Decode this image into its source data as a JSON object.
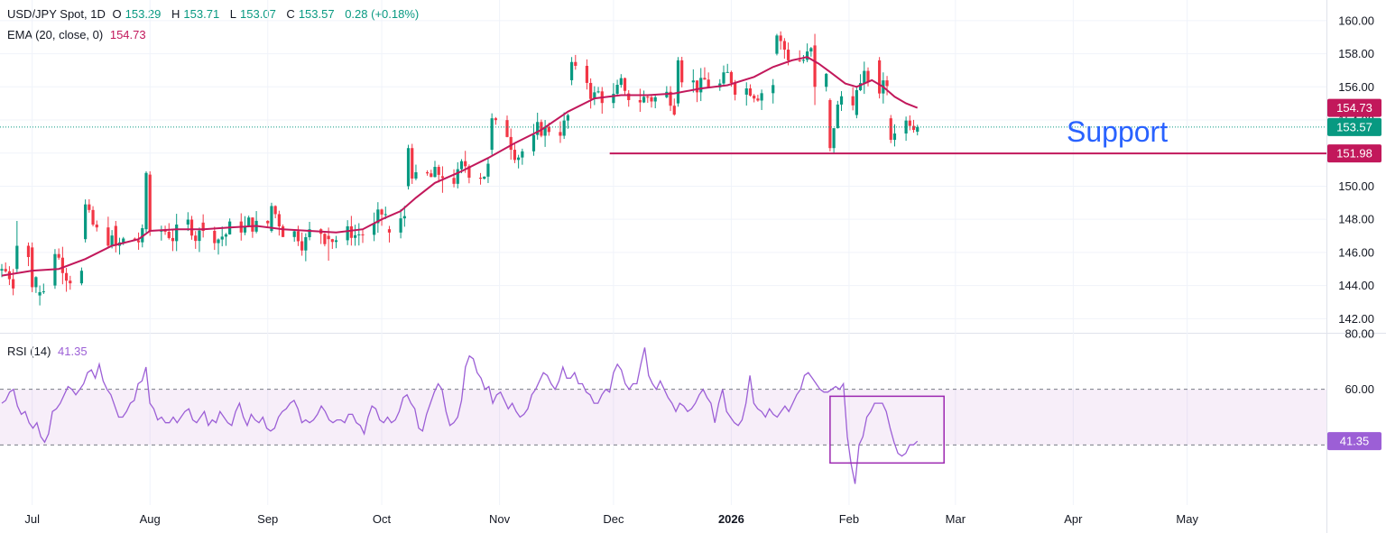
{
  "legend": {
    "symbol": "USD/JPY Spot, 1D",
    "o_label": "O",
    "o_value": "153.29",
    "h_label": "H",
    "h_value": "153.71",
    "l_label": "L",
    "l_value": "153.07",
    "c_label": "C",
    "c_value": "153.57",
    "change": "0.28 (+0.18%)",
    "ema_label": "EMA (20, close, 0)",
    "ema_value": "154.73",
    "rsi_label": "RSI (14)",
    "rsi_value": "41.35"
  },
  "annotation": {
    "support_label": "Support"
  },
  "colors": {
    "up": "#089981",
    "down": "#f23645",
    "ema": "#c2185b",
    "rsi": "#9c5fd6",
    "support": "#c2185b",
    "rsi_box": "#9c27b0",
    "annotation": "#2962ff"
  },
  "chart_data": [
    {
      "type": "candlestick",
      "title": "USD/JPY Spot, 1D",
      "y_axis": {
        "ticks": [
          "160.00",
          "158.00",
          "156.00",
          "154.00",
          "152.00",
          "150.00",
          "148.00",
          "146.00",
          "144.00",
          "142.00"
        ],
        "ylim": [
          141.2,
          160.7
        ],
        "position": "right"
      },
      "x_axis": {
        "ticks": [
          "Jul",
          "Aug",
          "Sep",
          "Oct",
          "Nov",
          "Dec",
          "2026",
          "Feb",
          "Mar",
          "Apr",
          "May"
        ],
        "bold": [
          "2026"
        ]
      },
      "price_tags": [
        {
          "label": "154.73",
          "value": 154.73,
          "color": "#c2185b"
        },
        {
          "label": "153.57",
          "value": 153.57,
          "color": "#089981"
        },
        {
          "label": "151.98",
          "value": 151.98,
          "color": "#c2185b"
        }
      ],
      "support_level": 151.98,
      "ema_series": [
        [
          "2025-06-23",
          144.6
        ],
        [
          "2025-07-01",
          144.9
        ],
        [
          "2025-07-08",
          145.0
        ],
        [
          "2025-07-15",
          145.6
        ],
        [
          "2025-07-22",
          146.4
        ],
        [
          "2025-07-29",
          146.8
        ],
        [
          "2025-08-01",
          147.3
        ],
        [
          "2025-08-08",
          147.4
        ],
        [
          "2025-08-15",
          147.4
        ],
        [
          "2025-08-22",
          147.5
        ],
        [
          "2025-08-29",
          147.6
        ],
        [
          "2025-09-05",
          147.4
        ],
        [
          "2025-09-12",
          147.3
        ],
        [
          "2025-09-19",
          147.2
        ],
        [
          "2025-09-26",
          147.4
        ],
        [
          "2025-10-01",
          148.0
        ],
        [
          "2025-10-06",
          148.5
        ],
        [
          "2025-10-10",
          149.3
        ],
        [
          "2025-10-15",
          150.2
        ],
        [
          "2025-10-22",
          150.9
        ],
        [
          "2025-10-29",
          151.7
        ],
        [
          "2025-11-05",
          152.6
        ],
        [
          "2025-11-12",
          153.4
        ],
        [
          "2025-11-19",
          154.5
        ],
        [
          "2025-11-26",
          155.3
        ],
        [
          "2025-12-03",
          155.5
        ],
        [
          "2025-12-10",
          155.5
        ],
        [
          "2025-12-17",
          155.6
        ],
        [
          "2025-12-24",
          155.9
        ],
        [
          "2025-12-31",
          156.1
        ],
        [
          "2026-01-07",
          156.6
        ],
        [
          "2026-01-12",
          157.2
        ],
        [
          "2026-01-17",
          157.6
        ],
        [
          "2026-01-21",
          157.8
        ],
        [
          "2026-01-24",
          157.4
        ],
        [
          "2026-01-27",
          156.9
        ],
        [
          "2026-01-31",
          156.2
        ],
        [
          "2026-02-03",
          156.0
        ],
        [
          "2026-02-07",
          156.4
        ],
        [
          "2026-02-10",
          156.0
        ],
        [
          "2026-02-13",
          155.4
        ],
        [
          "2026-02-16",
          155.0
        ],
        [
          "2026-02-19",
          154.73
        ]
      ],
      "candles_sample": [
        [
          "2025-06-23",
          144.9,
          145.3,
          144.5,
          145.0
        ],
        [
          "2025-06-27",
          145.0,
          147.9,
          144.8,
          146.4
        ],
        [
          "2025-07-01",
          146.3,
          146.6,
          143.6,
          143.9
        ],
        [
          "2025-07-03",
          143.4,
          144.0,
          142.8,
          143.6
        ],
        [
          "2025-07-07",
          144.0,
          146.2,
          143.8,
          145.9
        ],
        [
          "2025-07-15",
          146.8,
          149.2,
          146.6,
          148.9
        ],
        [
          "2025-07-23",
          147.6,
          147.9,
          146.0,
          146.4
        ],
        [
          "2025-07-31",
          147.4,
          150.9,
          147.2,
          150.8
        ],
        [
          "2025-08-01",
          150.7,
          150.9,
          147.0,
          147.3
        ],
        [
          "2025-08-15",
          147.8,
          148.3,
          146.9,
          147.3
        ],
        [
          "2025-09-02",
          147.3,
          149.0,
          147.2,
          148.8
        ],
        [
          "2025-09-17",
          147.0,
          147.5,
          145.5,
          146.8
        ],
        [
          "2025-10-03",
          147.4,
          147.6,
          146.6,
          147.2
        ],
        [
          "2025-10-08",
          150.0,
          152.5,
          149.8,
          152.3
        ],
        [
          "2025-10-17",
          150.6,
          151.2,
          149.6,
          150.5
        ],
        [
          "2025-10-30",
          152.2,
          154.4,
          151.9,
          154.1
        ],
        [
          "2025-11-20",
          156.4,
          157.8,
          156.1,
          157.5
        ],
        [
          "2025-12-05",
          155.6,
          155.8,
          154.8,
          155.2
        ],
        [
          "2025-12-18",
          155.0,
          157.8,
          154.8,
          157.6
        ],
        [
          "2026-01-13",
          158.0,
          159.2,
          157.9,
          159.1
        ],
        [
          "2026-01-23",
          158.5,
          159.2,
          154.9,
          156.0
        ],
        [
          "2026-01-27",
          155.2,
          155.3,
          152.1,
          152.3
        ],
        [
          "2026-02-03",
          154.3,
          156.0,
          154.1,
          155.8
        ],
        [
          "2026-02-09",
          157.6,
          157.8,
          155.3,
          155.6
        ],
        [
          "2026-02-12",
          154.1,
          154.3,
          152.6,
          152.8
        ],
        [
          "2026-02-19",
          153.29,
          153.71,
          153.07,
          153.57
        ]
      ]
    },
    {
      "type": "line",
      "title": "RSI (14)",
      "ylim": [
        20,
        80
      ],
      "y_axis": {
        "ticks": [
          "80.00",
          "60.00"
        ],
        "position": "right"
      },
      "bands": [
        60,
        40
      ],
      "value_tag": {
        "label": "41.35",
        "value": 41.35,
        "color": "#9c5fd6"
      },
      "series": [
        {
          "name": "RSI (14)",
          "values": [
            55,
            56,
            59,
            60,
            54,
            51,
            52,
            48,
            46,
            48,
            43,
            41,
            44,
            52,
            53,
            55,
            58,
            61,
            60,
            58,
            60,
            62,
            66,
            67,
            64,
            69,
            63,
            60,
            58,
            54,
            50,
            50,
            52,
            55,
            56,
            62,
            63,
            68,
            55,
            53,
            49,
            50,
            48,
            48,
            50,
            48,
            50,
            52,
            53,
            49,
            48,
            50,
            52,
            47,
            49,
            48,
            52,
            50,
            48,
            47,
            52,
            55,
            50,
            47,
            51,
            49,
            48,
            50,
            46,
            45,
            46,
            50,
            52,
            53,
            55,
            56,
            53,
            48,
            49,
            48,
            49,
            51,
            54,
            52,
            49,
            48,
            49,
            49,
            48,
            51,
            51,
            48,
            47,
            44,
            50,
            54,
            53,
            49,
            48,
            50,
            48,
            49,
            52,
            57,
            58,
            55,
            53,
            46,
            45,
            51,
            55,
            59,
            62,
            60,
            52,
            47,
            48,
            50,
            56,
            68,
            72,
            71,
            66,
            64,
            60,
            61,
            55,
            58,
            59,
            56,
            53,
            55,
            52,
            50,
            51,
            53,
            58,
            60,
            63,
            66,
            65,
            62,
            60,
            63,
            68,
            64,
            64,
            66,
            62,
            62,
            59,
            58,
            55,
            55,
            58,
            60,
            59,
            66,
            69,
            67,
            62,
            60,
            62,
            62,
            69,
            75,
            65,
            62,
            60,
            63,
            60,
            57,
            55,
            52,
            55,
            54,
            52,
            53,
            55,
            58,
            60,
            57,
            55,
            48,
            55,
            60,
            52,
            50,
            48,
            47,
            49,
            55,
            65,
            55,
            53,
            52,
            50,
            53,
            51,
            50,
            52,
            54,
            52,
            55,
            58,
            60,
            65,
            66,
            64,
            62,
            60,
            59,
            59,
            60,
            61,
            60,
            62,
            43,
            33,
            26,
            40,
            43,
            50,
            52,
            55,
            55,
            55,
            52,
            46,
            41,
            37,
            36,
            37,
            40,
            40,
            41.35
          ]
        }
      ]
    }
  ]
}
